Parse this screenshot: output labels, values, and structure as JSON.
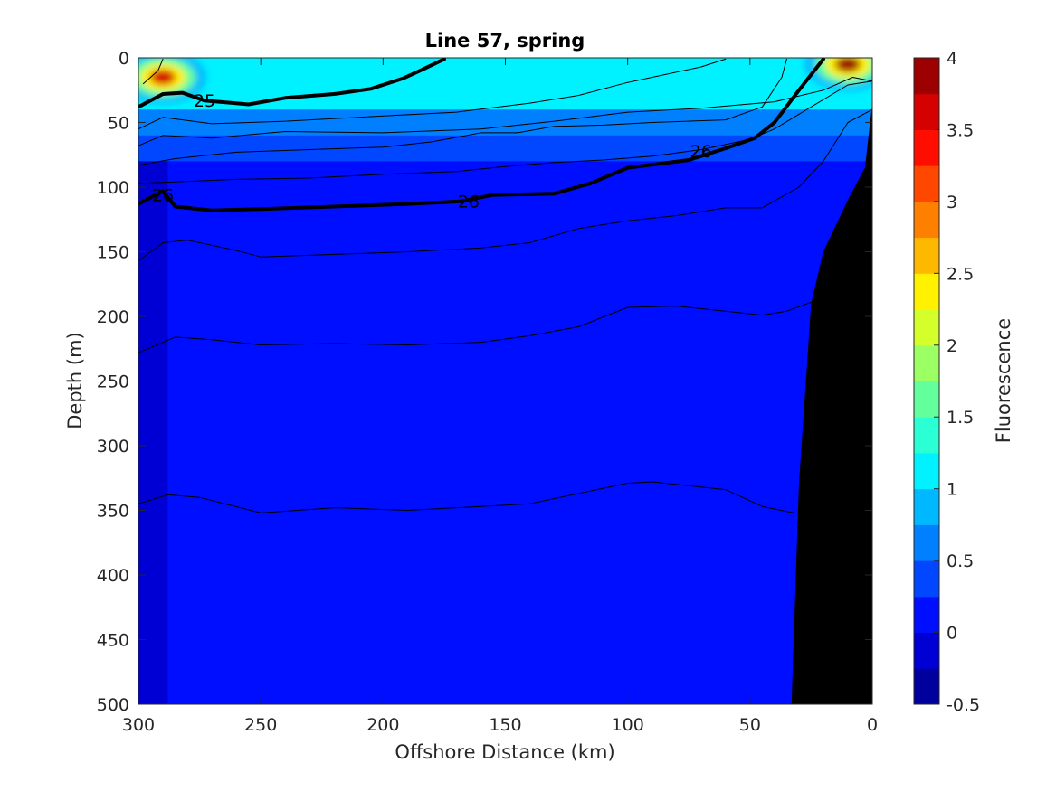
{
  "chart_data": {
    "type": "heatmap",
    "title": "Line 57, spring",
    "xlabel": "Offshore Distance (km)",
    "ylabel": "Depth (m)",
    "xlim": [
      300,
      0
    ],
    "x_reversed": true,
    "ylim": [
      0,
      500
    ],
    "y_reversed": true,
    "xticks": [
      "300",
      "250",
      "200",
      "150",
      "100",
      "50",
      "0"
    ],
    "yticks": [
      "0",
      "50",
      "100",
      "150",
      "200",
      "250",
      "300",
      "350",
      "400",
      "450",
      "500"
    ],
    "colorbar": {
      "label": "Fluorescence",
      "range": [
        -0.5,
        4
      ],
      "ticks": [
        "-0.5",
        "0",
        "0.5",
        "1",
        "1.5",
        "2",
        "2.5",
        "3",
        "3.5",
        "4"
      ],
      "level_step": 0.25,
      "colormap": "jet"
    },
    "fluorescence_layers": [
      {
        "depth_m": 0,
        "value": 1.2
      },
      {
        "depth_m": 25,
        "value": 1.0
      },
      {
        "depth_m": 40,
        "value": 0.65
      },
      {
        "depth_m": 60,
        "value": 0.4
      },
      {
        "depth_m": 80,
        "value": 0.15
      },
      {
        "depth_m": 500,
        "value": 0.1
      }
    ],
    "features": [
      {
        "name": "surface maximum",
        "x_km": 290,
        "depth_m": 15,
        "value": 3.5
      },
      {
        "name": "surface maximum",
        "x_km": 10,
        "depth_m": 5,
        "value": 3.8
      },
      {
        "name": "low offshore band",
        "x_km": [
          288,
          300
        ],
        "depth_m": [
          80,
          500
        ],
        "value": -0.1
      }
    ],
    "seafloor": [
      {
        "x_km": 33,
        "depth_m": 500
      },
      {
        "x_km": 30,
        "depth_m": 330
      },
      {
        "x_km": 25,
        "depth_m": 190
      },
      {
        "x_km": 20,
        "depth_m": 150
      },
      {
        "x_km": 10,
        "depth_m": 110
      },
      {
        "x_km": 3,
        "depth_m": 85
      },
      {
        "x_km": 0,
        "depth_m": 35
      }
    ],
    "density_contours": [
      {
        "label": "25",
        "bold": true,
        "label_at": [
          273,
          33
        ],
        "points": [
          [
            300,
            38
          ],
          [
            290,
            28
          ],
          [
            282,
            27
          ],
          [
            273,
            33
          ],
          [
            255,
            36
          ],
          [
            240,
            31
          ],
          [
            220,
            28
          ],
          [
            205,
            24
          ],
          [
            192,
            16
          ],
          [
            185,
            10
          ],
          [
            175,
            1
          ]
        ]
      },
      {
        "label": "26",
        "bold": true,
        "label_at": [
          290,
          106
        ],
        "points": [
          [
            300,
            113
          ],
          [
            290,
            103
          ],
          [
            285,
            115
          ],
          [
            270,
            118
          ],
          [
            250,
            117
          ],
          [
            220,
            115
          ],
          [
            190,
            113
          ],
          [
            168,
            111
          ],
          [
            155,
            106
          ],
          [
            130,
            105
          ],
          [
            115,
            97
          ],
          [
            100,
            85
          ],
          [
            75,
            79
          ],
          [
            60,
            70
          ],
          [
            48,
            62
          ],
          [
            40,
            50
          ],
          [
            30,
            25
          ],
          [
            20,
            1
          ]
        ]
      },
      {
        "label": "26",
        "bold": true,
        "label_at": [
          165,
          111
        ],
        "points": []
      },
      {
        "label": "26",
        "bold": true,
        "label_at": [
          70,
          72
        ],
        "points": []
      },
      {
        "label": "",
        "bold": false,
        "points": [
          [
            290,
            1
          ],
          [
            292,
            10
          ],
          [
            298,
            20
          ]
        ]
      },
      {
        "label": "",
        "bold": false,
        "points": [
          [
            300,
            55
          ],
          [
            290,
            46
          ],
          [
            270,
            51
          ],
          [
            240,
            49
          ],
          [
            200,
            45
          ],
          [
            170,
            42
          ],
          [
            140,
            35
          ],
          [
            120,
            29
          ],
          [
            100,
            19
          ],
          [
            70,
            7
          ],
          [
            60,
            1
          ]
        ]
      },
      {
        "label": "",
        "bold": false,
        "points": [
          [
            300,
            68
          ],
          [
            290,
            60
          ],
          [
            270,
            62
          ],
          [
            240,
            57
          ],
          [
            200,
            58
          ],
          [
            160,
            55
          ],
          [
            130,
            49
          ],
          [
            100,
            42
          ],
          [
            70,
            39
          ],
          [
            40,
            34
          ],
          [
            20,
            25
          ],
          [
            8,
            15
          ],
          [
            0,
            18
          ]
        ]
      },
      {
        "label": "",
        "bold": false,
        "points": [
          [
            300,
            83
          ],
          [
            285,
            78
          ],
          [
            260,
            73
          ],
          [
            230,
            71
          ],
          [
            200,
            69
          ],
          [
            180,
            65
          ],
          [
            160,
            58
          ],
          [
            145,
            58
          ],
          [
            130,
            53
          ],
          [
            110,
            52
          ],
          [
            90,
            50
          ],
          [
            60,
            48
          ],
          [
            45,
            38
          ],
          [
            37,
            15
          ],
          [
            35,
            1
          ]
        ]
      },
      {
        "label": "",
        "bold": false,
        "points": [
          [
            300,
            97
          ],
          [
            285,
            96
          ],
          [
            260,
            94
          ],
          [
            230,
            93
          ],
          [
            200,
            90
          ],
          [
            170,
            88
          ],
          [
            150,
            84
          ],
          [
            130,
            81
          ],
          [
            110,
            79
          ],
          [
            90,
            76
          ],
          [
            70,
            71
          ],
          [
            50,
            63
          ],
          [
            40,
            55
          ],
          [
            25,
            38
          ],
          [
            10,
            21
          ],
          [
            0,
            18
          ]
        ]
      },
      {
        "label": "",
        "bold": false,
        "points": [
          [
            300,
            157
          ],
          [
            290,
            143
          ],
          [
            280,
            141
          ],
          [
            260,
            149
          ],
          [
            250,
            154
          ],
          [
            220,
            152
          ],
          [
            190,
            150
          ],
          [
            160,
            147
          ],
          [
            140,
            143
          ],
          [
            120,
            132
          ],
          [
            100,
            126
          ],
          [
            80,
            122
          ],
          [
            60,
            116
          ],
          [
            45,
            116
          ],
          [
            30,
            100
          ],
          [
            20,
            80
          ],
          [
            10,
            50
          ],
          [
            0,
            40
          ]
        ]
      },
      {
        "label": "",
        "bold": false,
        "points": [
          [
            300,
            228
          ],
          [
            285,
            216
          ],
          [
            270,
            218
          ],
          [
            250,
            222
          ],
          [
            220,
            221
          ],
          [
            190,
            222
          ],
          [
            160,
            220
          ],
          [
            140,
            215
          ],
          [
            120,
            208
          ],
          [
            100,
            193
          ],
          [
            80,
            192
          ],
          [
            60,
            196
          ],
          [
            45,
            199
          ],
          [
            35,
            196
          ],
          [
            25,
            189
          ]
        ]
      },
      {
        "label": "",
        "bold": false,
        "points": [
          [
            300,
            345
          ],
          [
            288,
            338
          ],
          [
            275,
            340
          ],
          [
            250,
            352
          ],
          [
            220,
            348
          ],
          [
            190,
            350
          ],
          [
            160,
            347
          ],
          [
            140,
            345
          ],
          [
            120,
            337
          ],
          [
            100,
            329
          ],
          [
            90,
            328
          ],
          [
            80,
            330
          ],
          [
            60,
            334
          ],
          [
            45,
            347
          ],
          [
            32,
            352
          ]
        ]
      }
    ]
  }
}
